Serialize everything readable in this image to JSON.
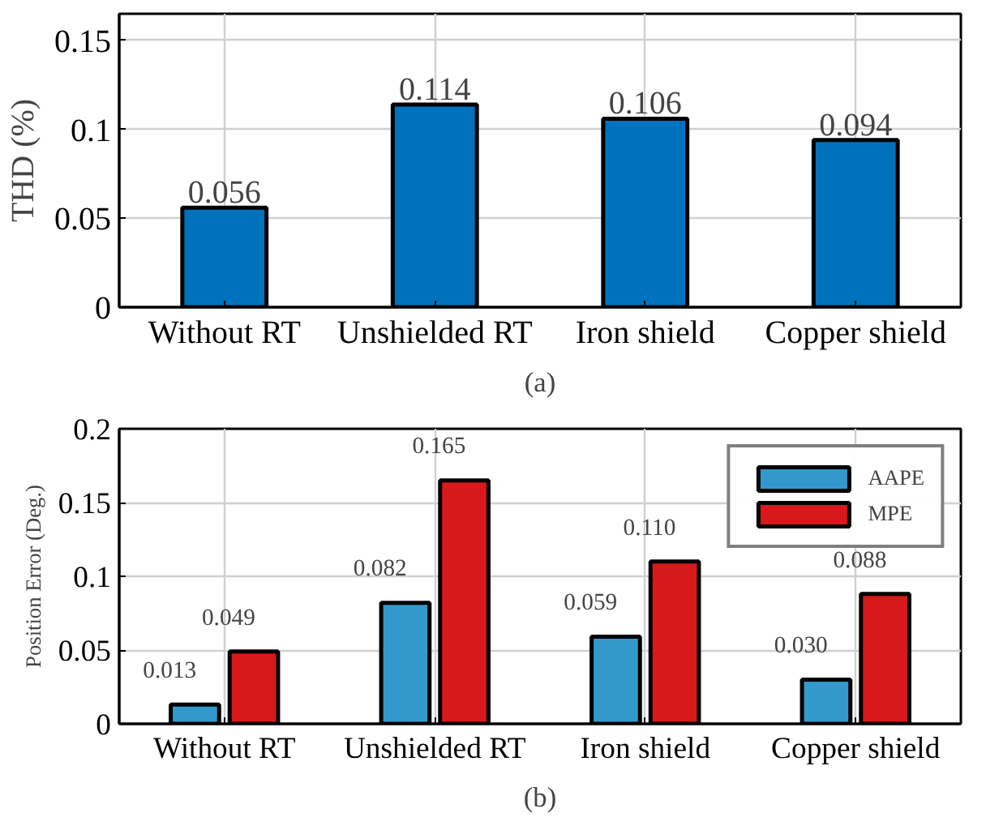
{
  "chart_data": [
    {
      "type": "bar",
      "ylabel": "THD (%)",
      "categories": [
        "Without RT",
        "Unshielded RT",
        "Iron shield",
        "Copper shield"
      ],
      "series": [
        {
          "color": "#0072bd",
          "values": [
            0.056,
            0.114,
            0.106,
            0.094
          ],
          "value_labels": [
            "0.056",
            "0.114",
            "0.106",
            "0.094"
          ]
        }
      ],
      "ylim": [
        0,
        0.165
      ],
      "yticks": [
        0,
        0.05,
        0.1,
        0.15
      ],
      "grid": true,
      "legend": false,
      "annotations": [
        "(a)"
      ]
    },
    {
      "type": "bar",
      "ylabel": "Position Error (Deg.)",
      "categories": [
        "Without RT",
        "Unshielded RT",
        "Iron shield",
        "Copper shield"
      ],
      "series": [
        {
          "name": "AAPE",
          "color": "#3399cc",
          "values": [
            0.013,
            0.082,
            0.059,
            0.03
          ],
          "value_labels": [
            "0.013",
            "0.082",
            "0.059",
            "0.030"
          ]
        },
        {
          "name": "MPE",
          "color": "#d7191c",
          "values": [
            0.049,
            0.165,
            0.11,
            0.088
          ],
          "value_labels": [
            "0.049",
            "0.165",
            "0.110",
            "0.088"
          ]
        }
      ],
      "ylim": [
        0,
        0.2
      ],
      "yticks": [
        0,
        0.05,
        0.1,
        0.15,
        0.2
      ],
      "grid": true,
      "legend": "top right",
      "annotations": [
        "(b)"
      ]
    }
  ]
}
